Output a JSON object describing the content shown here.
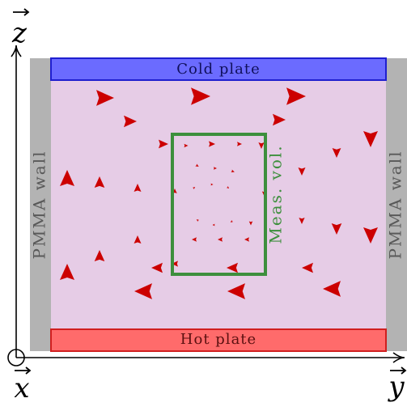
{
  "labels": {
    "cold_plate": "Cold plate",
    "hot_plate": "Hot plate",
    "left_wall": "PMMA wall",
    "right_wall": "PMMA wall",
    "measurement_volume": "Meas. vol.",
    "axis_z": "z",
    "axis_x": "x",
    "axis_y": "y"
  },
  "colors": {
    "cold_plate_fill": "#6b6bff",
    "cold_plate_stroke": "#1f1fd0",
    "hot_plate_fill": "#ff6b6b",
    "hot_plate_stroke": "#d01f1f",
    "fluid_fill": "#e6cce6",
    "wall_fill": "#b3b3b3",
    "wall_text": "#595959",
    "measurement_volume": "#3d8f3d",
    "arrows": "#cc0000",
    "axes": "#000000"
  },
  "velocity_arrows": [
    {
      "dir": "right",
      "size": "large"
    },
    {
      "dir": "right",
      "size": "large"
    },
    {
      "dir": "right",
      "size": "large"
    },
    {
      "dir": "right",
      "size": "medium"
    },
    {
      "dir": "right",
      "size": "medium"
    },
    {
      "dir": "right",
      "size": "medium"
    },
    {
      "dir": "down",
      "size": "large"
    }
  ]
}
